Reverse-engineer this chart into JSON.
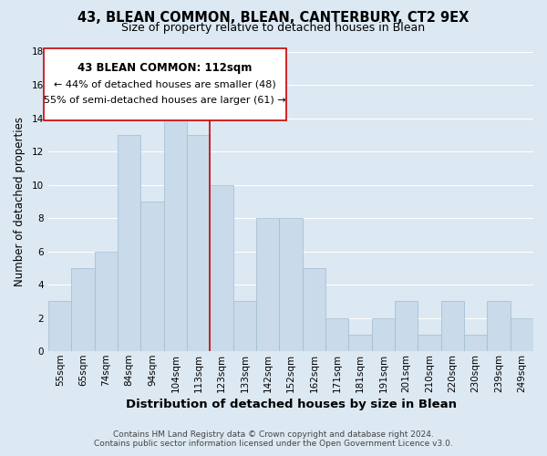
{
  "title": "43, BLEAN COMMON, BLEAN, CANTERBURY, CT2 9EX",
  "subtitle": "Size of property relative to detached houses in Blean",
  "xlabel": "Distribution of detached houses by size in Blean",
  "ylabel": "Number of detached properties",
  "bar_labels": [
    "55sqm",
    "65sqm",
    "74sqm",
    "84sqm",
    "94sqm",
    "104sqm",
    "113sqm",
    "123sqm",
    "133sqm",
    "142sqm",
    "152sqm",
    "162sqm",
    "171sqm",
    "181sqm",
    "191sqm",
    "201sqm",
    "210sqm",
    "220sqm",
    "230sqm",
    "239sqm",
    "249sqm"
  ],
  "bar_values": [
    3,
    5,
    6,
    13,
    9,
    14,
    13,
    10,
    3,
    8,
    8,
    5,
    2,
    1,
    2,
    3,
    1,
    3,
    1,
    3,
    2
  ],
  "bar_color": "#c9daea",
  "bar_edge_color": "#a0bcd0",
  "highlight_line_color": "#cc0000",
  "highlight_bar_index": 6,
  "ylim": [
    0,
    18
  ],
  "yticks": [
    0,
    2,
    4,
    6,
    8,
    10,
    12,
    14,
    16,
    18
  ],
  "annotation_title": "43 BLEAN COMMON: 112sqm",
  "annotation_line1": "← 44% of detached houses are smaller (48)",
  "annotation_line2": "55% of semi-detached houses are larger (61) →",
  "footer_line1": "Contains HM Land Registry data © Crown copyright and database right 2024.",
  "footer_line2": "Contains public sector information licensed under the Open Government Licence v3.0.",
  "grid_color": "#ffffff",
  "bg_color": "#dce8f2",
  "plot_bg_color": "#dce8f2",
  "title_fontsize": 10.5,
  "subtitle_fontsize": 9,
  "xlabel_fontsize": 9.5,
  "ylabel_fontsize": 8.5,
  "tick_fontsize": 7.5,
  "footer_fontsize": 6.5
}
